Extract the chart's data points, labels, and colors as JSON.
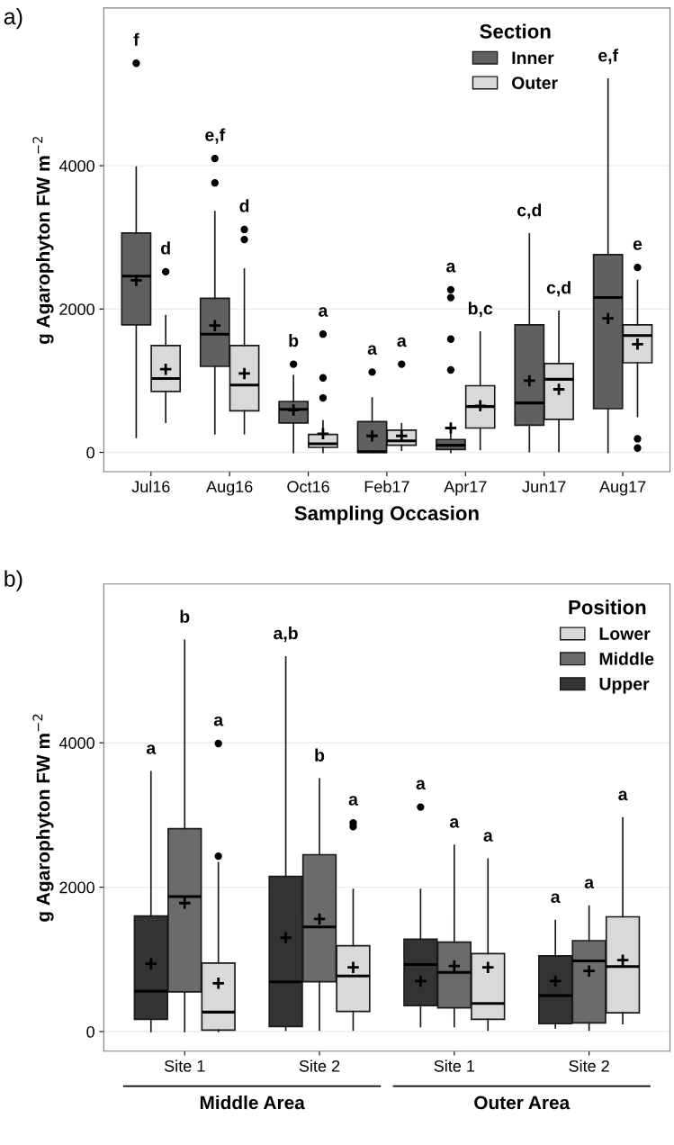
{
  "chart_data": [
    {
      "type": "box",
      "title": "a)",
      "xlabel": "Sampling Occasion",
      "ylabel": "g Agarophyton FW m$^{−2}$",
      "legend_title": "Section",
      "legend": "top right",
      "grid": "y",
      "categories": [
        "Jul16",
        "Aug16",
        "Oct16",
        "Feb17",
        "Apr17",
        "Jun17",
        "Aug17"
      ],
      "ylim": [
        -270,
        6200
      ],
      "yticks": [
        0,
        2000,
        4000
      ],
      "series": [
        {
          "name": "Inner",
          "color": "#606060",
          "value_labels": [
            "f",
            "e,f",
            "b",
            "a",
            "a",
            "c,d",
            "e,f"
          ],
          "boxes": [
            {
              "low": 210,
              "q1": 1780,
              "median": 2460,
              "q3": 3060,
              "high": 3980,
              "mean": 2400,
              "outliers": [
                5430
              ]
            },
            {
              "low": 260,
              "q1": 1200,
              "median": 1650,
              "q3": 2150,
              "high": 3360,
              "mean": 1770,
              "outliers": [
                3760,
                4100
              ]
            },
            {
              "low": 0,
              "q1": 410,
              "median": 600,
              "q3": 710,
              "high": 1070,
              "mean": 590,
              "outliers": [
                1230
              ]
            },
            {
              "low": 0,
              "q1": 0,
              "median": 10,
              "q3": 430,
              "high": 760,
              "mean": 230,
              "outliers": [
                1120
              ]
            },
            {
              "low": 0,
              "q1": 40,
              "median": 100,
              "q3": 180,
              "high": 390,
              "mean": 340,
              "outliers": [
                1150,
                1580,
                2160,
                2270
              ]
            },
            {
              "low": 10,
              "q1": 380,
              "median": 690,
              "q3": 1780,
              "high": 3050,
              "mean": 1000
            },
            {
              "low": 0,
              "q1": 610,
              "median": 2160,
              "q3": 2760,
              "high": 5210,
              "mean": 1870
            }
          ]
        },
        {
          "name": "Outer",
          "color": "#d9d9d9",
          "value_labels": [
            "d",
            "d",
            "a",
            "a",
            "b,c",
            "c,d",
            "e"
          ],
          "boxes": [
            {
              "low": 420,
              "q1": 850,
              "median": 1030,
              "q3": 1490,
              "high": 1910,
              "mean": 1160,
              "outliers": [
                2520
              ]
            },
            {
              "low": 260,
              "q1": 580,
              "median": 940,
              "q3": 1490,
              "high": 2560,
              "mean": 1100,
              "outliers": [
                2970,
                3110
              ]
            },
            {
              "low": 0,
              "q1": 70,
              "median": 120,
              "q3": 250,
              "high": 440,
              "mean": 260,
              "outliers": [
                760,
                1040,
                1650
              ]
            },
            {
              "low": 30,
              "q1": 100,
              "median": 160,
              "q3": 310,
              "high": 400,
              "mean": 230,
              "outliers": [
                1230
              ]
            },
            {
              "low": 40,
              "q1": 340,
              "median": 640,
              "q3": 930,
              "high": 1680,
              "mean": 650
            },
            {
              "low": 10,
              "q1": 460,
              "median": 1020,
              "q3": 1240,
              "high": 1970,
              "mean": 880
            },
            {
              "low": 500,
              "q1": 1250,
              "median": 1630,
              "q3": 1780,
              "high": 2400,
              "mean": 1510,
              "outliers": [
                60,
                190,
                2580
              ]
            }
          ]
        }
      ]
    },
    {
      "type": "box",
      "title": "b)",
      "ylabel": "g Agarophyton FW m$^{−2}$",
      "legend_title": "Position",
      "legend": "top right",
      "grid": "y",
      "categories": [
        "Site 1",
        "Site 2",
        "Site 1",
        "Site 2"
      ],
      "annotations": [
        "Middle Area",
        "Outer Area"
      ],
      "ylim": [
        -270,
        6200
      ],
      "yticks": [
        0,
        2000,
        4000
      ],
      "series": [
        {
          "name": "Upper",
          "color": "#333333",
          "value_labels": [
            "a",
            "a,b",
            "a",
            "a"
          ],
          "boxes": [
            {
              "low": 0,
              "q1": 170,
              "median": 560,
              "q3": 1600,
              "high": 3600,
              "mean": 940
            },
            {
              "low": 20,
              "q1": 70,
              "median": 690,
              "q3": 2150,
              "high": 5190,
              "mean": 1300
            },
            {
              "low": 70,
              "q1": 360,
              "median": 930,
              "q3": 1280,
              "high": 1970,
              "mean": 700,
              "outliers": [
                3110
              ]
            },
            {
              "low": 50,
              "q1": 110,
              "median": 500,
              "q3": 1050,
              "high": 1540,
              "mean": 700
            }
          ]
        },
        {
          "name": "Middle",
          "color": "#6b6b6b",
          "value_labels": [
            "b",
            "b",
            "a",
            "a"
          ],
          "boxes": [
            {
              "low": 0,
              "q1": 550,
              "median": 1870,
              "q3": 2810,
              "high": 5420,
              "mean": 1780
            },
            {
              "low": 20,
              "q1": 690,
              "median": 1450,
              "q3": 2450,
              "high": 3500,
              "mean": 1560
            },
            {
              "low": 70,
              "q1": 330,
              "median": 820,
              "q3": 1240,
              "high": 2580,
              "mean": 910
            },
            {
              "low": 20,
              "q1": 120,
              "median": 980,
              "q3": 1260,
              "high": 1740,
              "mean": 840
            }
          ]
        },
        {
          "name": "Lower",
          "color": "#d9d9d9",
          "value_labels": [
            "a",
            "a",
            "a",
            "a"
          ],
          "boxes": [
            {
              "low": 0,
              "q1": 20,
              "median": 270,
              "q3": 950,
              "high": 2340,
              "mean": 670,
              "outliers": [
                2430,
                3990
              ]
            },
            {
              "low": 20,
              "q1": 280,
              "median": 770,
              "q3": 1190,
              "high": 1970,
              "mean": 890,
              "outliers": [
                2840,
                2890
              ]
            },
            {
              "low": 20,
              "q1": 170,
              "median": 390,
              "q3": 1080,
              "high": 2390,
              "mean": 890
            },
            {
              "low": 110,
              "q1": 260,
              "median": 900,
              "q3": 1590,
              "high": 2960,
              "mean": 990
            }
          ]
        }
      ]
    }
  ]
}
